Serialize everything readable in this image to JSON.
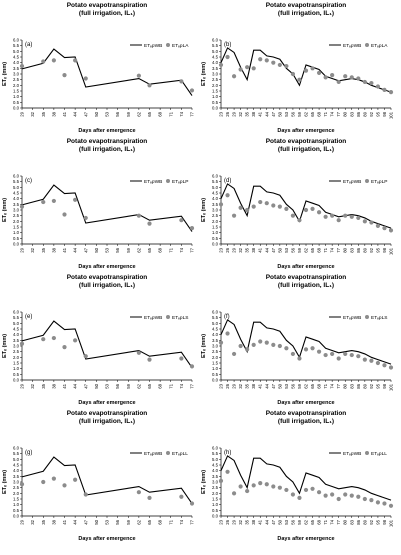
{
  "chart_data": [
    {
      "type": "line",
      "panel_label": "(a)",
      "title": "Potato evapotranspiration",
      "subtitle": "(full irrigation, IL₁)",
      "xlabel": "Days after emergence",
      "ylabel": "ETₑ (mm)",
      "ylim": [
        0,
        6
      ],
      "yticks": [
        "0.0",
        "0.5",
        "1.0",
        "1.5",
        "2.0",
        "2.5",
        "3.0",
        "3.5",
        "4.0",
        "4.5",
        "5.0",
        "5.5",
        "6.0"
      ],
      "categories": [
        "29",
        "32",
        "35",
        "38",
        "41",
        "44",
        "47",
        "50",
        "53",
        "56",
        "59",
        "62",
        "65",
        "68",
        "71",
        "74",
        "77"
      ],
      "legend": [
        "ETₑpWB",
        "ETₑpLA"
      ],
      "series": [
        {
          "name": "ETₑpWB",
          "style": "line",
          "x": [
            29,
            35,
            38,
            41,
            44,
            47,
            62,
            65,
            74,
            77
          ],
          "y": [
            3.45,
            3.95,
            5.2,
            4.45,
            4.5,
            1.85,
            2.6,
            2.1,
            2.45,
            1.1
          ]
        },
        {
          "name": "ETₑpLA",
          "style": "markers",
          "x": [
            29,
            35,
            38,
            41,
            44,
            47,
            62,
            65,
            74,
            77
          ],
          "y": [
            3.7,
            4.1,
            4.2,
            2.9,
            4.2,
            2.6,
            2.85,
            2.0,
            2.35,
            1.55
          ]
        }
      ]
    },
    {
      "type": "line",
      "panel_label": "(b)",
      "title": "Potato evapotranspiration",
      "subtitle": "(full irrigation, IL₁)",
      "xlabel": "Days after emergence",
      "ylabel": "ETₑ (mm)",
      "ylim": [
        0,
        6
      ],
      "yticks": [
        "0.0",
        "0.5",
        "1.0",
        "1.5",
        "2.0",
        "2.5",
        "3.0",
        "3.5",
        "4.0",
        "4.5",
        "5.0",
        "5.5",
        "6.0"
      ],
      "categories": [
        "23",
        "26",
        "29",
        "32",
        "35",
        "38",
        "41",
        "44",
        "47",
        "50",
        "53",
        "56",
        "59",
        "62",
        "65",
        "68",
        "71",
        "74",
        "77",
        "80",
        "83",
        "86",
        "89",
        "92",
        "95",
        "98",
        "101"
      ],
      "legend": [
        "ETₑpWB",
        "ETₑpLA"
      ],
      "series": [
        {
          "name": "ETₑpWB",
          "style": "line",
          "x": [
            23,
            26,
            29,
            32,
            35,
            38,
            41,
            44,
            47,
            50,
            53,
            56,
            59,
            62,
            65,
            68,
            71,
            74,
            77,
            80,
            83,
            86,
            89,
            92,
            95,
            98,
            101
          ],
          "y": [
            4.0,
            5.3,
            4.9,
            3.6,
            2.5,
            5.1,
            5.1,
            4.6,
            4.5,
            4.3,
            3.5,
            3.0,
            2.0,
            3.8,
            3.6,
            3.4,
            2.8,
            2.6,
            2.4,
            2.5,
            2.6,
            2.5,
            2.3,
            2.0,
            1.8,
            1.6,
            1.4
          ]
        },
        {
          "name": "ETₑpLA",
          "style": "markers",
          "x": [
            23,
            26,
            29,
            32,
            35,
            38,
            41,
            44,
            47,
            50,
            53,
            56,
            59,
            62,
            65,
            68,
            71,
            74,
            77,
            80,
            83,
            86,
            89,
            92,
            95,
            98,
            101
          ],
          "y": [
            3.8,
            4.5,
            2.8,
            3.4,
            3.6,
            3.5,
            4.3,
            4.2,
            4.0,
            3.8,
            3.7,
            3.0,
            2.5,
            3.3,
            3.5,
            3.1,
            2.7,
            2.9,
            2.3,
            2.8,
            2.7,
            2.6,
            2.3,
            2.2,
            1.9,
            1.6,
            1.4
          ]
        }
      ]
    },
    {
      "type": "line",
      "panel_label": "(c)",
      "title": "Potato evapotranspiration",
      "subtitle": "(full irrigation, IL₁)",
      "xlabel": "Days after emergence",
      "ylabel": "ETₑ (mm)",
      "ylim": [
        0,
        6
      ],
      "yticks": [
        "0.0",
        "0.5",
        "1.0",
        "1.5",
        "2.0",
        "2.5",
        "3.0",
        "3.5",
        "4.0",
        "4.5",
        "5.0",
        "5.5",
        "6.0"
      ],
      "categories": [
        "29",
        "32",
        "35",
        "38",
        "41",
        "44",
        "47",
        "50",
        "53",
        "56",
        "59",
        "62",
        "65",
        "68",
        "71",
        "74",
        "77"
      ],
      "legend": [
        "ETₑpWB",
        "ETₑpLP"
      ],
      "series": [
        {
          "name": "ETₑpWB",
          "style": "line",
          "x": [
            29,
            35,
            38,
            41,
            44,
            47,
            62,
            65,
            74,
            77
          ],
          "y": [
            3.45,
            3.95,
            5.2,
            4.45,
            4.5,
            1.85,
            2.6,
            2.1,
            2.45,
            1.1
          ]
        },
        {
          "name": "ETₑpLP",
          "style": "markers",
          "x": [
            29,
            35,
            38,
            41,
            44,
            47,
            62,
            65,
            74,
            77
          ],
          "y": [
            3.3,
            3.7,
            3.8,
            2.6,
            3.9,
            2.3,
            2.5,
            1.8,
            2.1,
            1.4
          ]
        }
      ]
    },
    {
      "type": "line",
      "panel_label": "(d)",
      "title": "Potato evapotranspiration",
      "subtitle": "(full irrigation, IL₁)",
      "xlabel": "Days after emergence",
      "ylabel": "ETₑ (mm)",
      "ylim": [
        0,
        6
      ],
      "yticks": [
        "0.0",
        "0.5",
        "1.0",
        "1.5",
        "2.0",
        "2.5",
        "3.0",
        "3.5",
        "4.0",
        "4.5",
        "5.0",
        "5.5",
        "6.0"
      ],
      "categories": [
        "23",
        "26",
        "29",
        "32",
        "35",
        "38",
        "41",
        "44",
        "47",
        "50",
        "53",
        "56",
        "59",
        "62",
        "65",
        "68",
        "71",
        "74",
        "77",
        "80",
        "83",
        "86",
        "89",
        "92",
        "95",
        "98",
        "101"
      ],
      "legend": [
        "ETₑpWB",
        "ETₑpLP"
      ],
      "series": [
        {
          "name": "ETₑpWB",
          "style": "line",
          "x": [
            23,
            26,
            29,
            32,
            35,
            38,
            41,
            44,
            47,
            50,
            53,
            56,
            59,
            62,
            65,
            68,
            71,
            74,
            77,
            80,
            83,
            86,
            89,
            92,
            95,
            98,
            101
          ],
          "y": [
            4.0,
            5.3,
            4.9,
            3.6,
            2.5,
            5.1,
            5.1,
            4.6,
            4.5,
            4.3,
            3.5,
            3.0,
            2.0,
            3.8,
            3.6,
            3.4,
            2.8,
            2.6,
            2.4,
            2.5,
            2.6,
            2.5,
            2.3,
            2.0,
            1.8,
            1.6,
            1.4
          ]
        },
        {
          "name": "ETₑpLP",
          "style": "markers",
          "x": [
            23,
            26,
            29,
            32,
            35,
            38,
            41,
            44,
            47,
            50,
            53,
            56,
            59,
            62,
            65,
            68,
            71,
            74,
            77,
            80,
            83,
            86,
            89,
            92,
            95,
            98,
            101
          ],
          "y": [
            3.5,
            4.3,
            2.5,
            3.2,
            3.0,
            3.3,
            3.7,
            3.6,
            3.4,
            3.3,
            3.1,
            2.5,
            2.1,
            3.0,
            3.1,
            2.8,
            2.4,
            2.5,
            2.1,
            2.5,
            2.4,
            2.3,
            2.0,
            1.9,
            1.6,
            1.4,
            1.2
          ]
        }
      ]
    },
    {
      "type": "line",
      "panel_label": "(e)",
      "title": "Potato evapotranspiration",
      "subtitle": "(full irrigation, IL₁)",
      "xlabel": "Days after emergence",
      "ylabel": "ETₑ (mm)",
      "ylim": [
        0,
        6
      ],
      "yticks": [
        "0.0",
        "0.5",
        "1.0",
        "1.5",
        "2.0",
        "2.5",
        "3.0",
        "3.5",
        "4.0",
        "4.5",
        "5.0",
        "5.5",
        "6.0"
      ],
      "categories": [
        "29",
        "32",
        "35",
        "38",
        "41",
        "44",
        "47",
        "50",
        "53",
        "56",
        "59",
        "62",
        "65",
        "68",
        "71",
        "74",
        "77"
      ],
      "legend": [
        "ETₑpWB",
        "ETₑpLS"
      ],
      "series": [
        {
          "name": "ETₑpWB",
          "style": "line",
          "x": [
            29,
            35,
            38,
            41,
            44,
            47,
            62,
            65,
            74,
            77
          ],
          "y": [
            3.45,
            3.95,
            5.2,
            4.45,
            4.5,
            1.85,
            2.6,
            2.1,
            2.45,
            1.1
          ]
        },
        {
          "name": "ETₑpLS",
          "style": "markers",
          "x": [
            29,
            35,
            38,
            41,
            44,
            47,
            62,
            65,
            74,
            77
          ],
          "y": [
            3.2,
            3.6,
            3.7,
            2.9,
            3.5,
            2.1,
            2.4,
            1.8,
            1.9,
            1.2
          ]
        }
      ]
    },
    {
      "type": "line",
      "panel_label": "(f)",
      "title": "Potato evapotranspiration",
      "subtitle": "(full irrigation, IL₁)",
      "xlabel": "Days after emergence",
      "ylabel": "ETₑ (mm)",
      "ylim": [
        0,
        6
      ],
      "yticks": [
        "0.0",
        "0.5",
        "1.0",
        "1.5",
        "2.0",
        "2.5",
        "3.0",
        "3.5",
        "4.0",
        "4.5",
        "5.0",
        "5.5",
        "6.0"
      ],
      "categories": [
        "23",
        "26",
        "29",
        "32",
        "35",
        "38",
        "41",
        "44",
        "47",
        "50",
        "53",
        "56",
        "59",
        "62",
        "65",
        "68",
        "71",
        "74",
        "77",
        "80",
        "83",
        "86",
        "89",
        "92",
        "95",
        "98",
        "101"
      ],
      "legend": [
        "ETₑpWB",
        "ETₑpLS"
      ],
      "series": [
        {
          "name": "ETₑpWB",
          "style": "line",
          "x": [
            23,
            26,
            29,
            32,
            35,
            38,
            41,
            44,
            47,
            50,
            53,
            56,
            59,
            62,
            65,
            68,
            71,
            74,
            77,
            80,
            83,
            86,
            89,
            92,
            95,
            98,
            101
          ],
          "y": [
            4.0,
            5.3,
            4.9,
            3.6,
            2.5,
            5.1,
            5.1,
            4.6,
            4.5,
            4.3,
            3.5,
            3.0,
            2.0,
            3.8,
            3.6,
            3.4,
            2.8,
            2.6,
            2.4,
            2.5,
            2.6,
            2.5,
            2.3,
            2.0,
            1.8,
            1.6,
            1.4
          ]
        },
        {
          "name": "ETₑpLS",
          "style": "markers",
          "x": [
            23,
            26,
            29,
            32,
            35,
            38,
            41,
            44,
            47,
            50,
            53,
            56,
            59,
            62,
            65,
            68,
            71,
            74,
            77,
            80,
            83,
            86,
            89,
            92,
            95,
            98,
            101
          ],
          "y": [
            3.3,
            4.1,
            2.3,
            3.0,
            2.7,
            3.1,
            3.4,
            3.3,
            3.1,
            3.0,
            2.8,
            2.3,
            1.9,
            2.7,
            2.8,
            2.5,
            2.2,
            2.3,
            1.9,
            2.3,
            2.2,
            2.1,
            1.8,
            1.7,
            1.5,
            1.3,
            1.1
          ]
        }
      ]
    },
    {
      "type": "line",
      "panel_label": "(g)",
      "title": "Potato evapotranspiration",
      "subtitle": "(full irrigation, IL₁)",
      "xlabel": "Days after emergence",
      "ylabel": "ETₑ (mm)",
      "ylim": [
        0,
        6
      ],
      "yticks": [
        "0.0",
        "0.5",
        "1.0",
        "1.5",
        "2.0",
        "2.5",
        "3.0",
        "3.5",
        "4.0",
        "4.5",
        "5.0",
        "5.5",
        "6.0"
      ],
      "categories": [
        "29",
        "32",
        "35",
        "38",
        "41",
        "44",
        "47",
        "50",
        "53",
        "56",
        "59",
        "62",
        "65",
        "68",
        "71",
        "74",
        "77"
      ],
      "legend": [
        "ETₑpWB",
        "ETₑpLL"
      ],
      "series": [
        {
          "name": "ETₑpWB",
          "style": "line",
          "x": [
            29,
            35,
            38,
            41,
            44,
            47,
            62,
            65,
            74,
            77
          ],
          "y": [
            3.45,
            3.95,
            5.2,
            4.45,
            4.5,
            1.85,
            2.6,
            2.1,
            2.45,
            1.1
          ]
        },
        {
          "name": "ETₑpLL",
          "style": "markers",
          "x": [
            29,
            35,
            38,
            41,
            44,
            47,
            62,
            65,
            74,
            77
          ],
          "y": [
            2.8,
            3.0,
            3.3,
            2.7,
            3.2,
            1.9,
            2.1,
            1.6,
            1.7,
            1.1
          ]
        }
      ]
    },
    {
      "type": "line",
      "panel_label": "(h)",
      "title": "Potato evapotranspiration",
      "subtitle": "(full irrigation, IL₁)",
      "xlabel": "Days after emergence",
      "ylabel": "ETₑ (mm)",
      "ylim": [
        0,
        6
      ],
      "yticks": [
        "0.0",
        "0.5",
        "1.0",
        "1.5",
        "2.0",
        "2.5",
        "3.0",
        "3.5",
        "4.0",
        "4.5",
        "5.0",
        "5.5",
        "6.0"
      ],
      "categories": [
        "23",
        "26",
        "29",
        "32",
        "35",
        "38",
        "41",
        "44",
        "47",
        "50",
        "53",
        "56",
        "59",
        "62",
        "65",
        "68",
        "71",
        "74",
        "77",
        "80",
        "83",
        "86",
        "89",
        "92",
        "95",
        "98",
        "101"
      ],
      "legend": [
        "ETₑpWB",
        "ETₑpLL"
      ],
      "series": [
        {
          "name": "ETₑpWB",
          "style": "line",
          "x": [
            23,
            26,
            29,
            32,
            35,
            38,
            41,
            44,
            47,
            50,
            53,
            56,
            59,
            62,
            65,
            68,
            71,
            74,
            77,
            80,
            83,
            86,
            89,
            92,
            95,
            98,
            101
          ],
          "y": [
            4.0,
            5.3,
            4.9,
            3.6,
            2.5,
            5.1,
            5.1,
            4.6,
            4.5,
            4.3,
            3.5,
            3.0,
            2.0,
            3.8,
            3.6,
            3.4,
            2.8,
            2.6,
            2.4,
            2.5,
            2.6,
            2.5,
            2.3,
            2.0,
            1.8,
            1.6,
            1.4
          ]
        },
        {
          "name": "ETₑpLL",
          "style": "markers",
          "x": [
            23,
            26,
            29,
            32,
            35,
            38,
            41,
            44,
            47,
            50,
            53,
            56,
            59,
            62,
            65,
            68,
            71,
            74,
            77,
            80,
            83,
            86,
            89,
            92,
            95,
            98,
            101
          ],
          "y": [
            3.1,
            3.9,
            2.0,
            2.6,
            2.2,
            2.7,
            2.9,
            2.8,
            2.6,
            2.5,
            2.3,
            1.9,
            1.6,
            2.3,
            2.4,
            2.1,
            1.8,
            1.9,
            1.5,
            1.9,
            1.8,
            1.7,
            1.5,
            1.4,
            1.2,
            1.1,
            0.9
          ]
        }
      ]
    }
  ],
  "colors": {
    "line": "#000000",
    "marker": "#8c8c8c",
    "axis": "#000000",
    "text": "#000000"
  }
}
